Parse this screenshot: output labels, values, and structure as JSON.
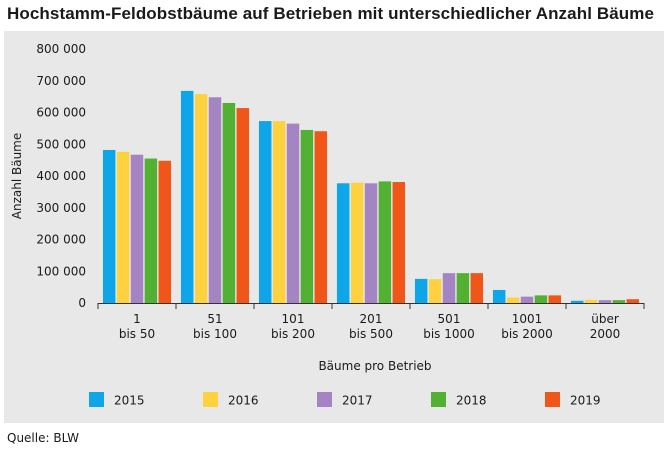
{
  "header": {
    "title": "Hochstamm-Feldobstbäume auf Betrieben mit unterschiedlicher Anzahl Bäume"
  },
  "footer": {
    "source": "Quelle: BLW"
  },
  "chart_data": {
    "type": "bar",
    "title": "Hochstamm-Feldobstbäume auf Betrieben mit unterschiedlicher Anzahl Bäume",
    "xlabel": "Bäume pro Betrieb",
    "ylabel": "Anzahl Bäume",
    "ylim": [
      0,
      800000
    ],
    "yticks": [
      {
        "value": 0,
        "label": "0"
      },
      {
        "value": 100000,
        "label": "100 000"
      },
      {
        "value": 200000,
        "label": "200 000"
      },
      {
        "value": 300000,
        "label": "300 000"
      },
      {
        "value": 400000,
        "label": "400 000"
      },
      {
        "value": 500000,
        "label": "500 000"
      },
      {
        "value": 600000,
        "label": "600 000"
      },
      {
        "value": 700000,
        "label": "700 000"
      },
      {
        "value": 800000,
        "label": "800 000"
      }
    ],
    "grid": false,
    "legend": "bottom",
    "categories": [
      [
        "1",
        "bis 50"
      ],
      [
        "51",
        "bis 100"
      ],
      [
        "101",
        "bis 200"
      ],
      [
        "201",
        "bis 500"
      ],
      [
        "501",
        "bis 1000"
      ],
      [
        "1001",
        "bis 2000"
      ],
      [
        "über",
        "2000"
      ]
    ],
    "series": [
      {
        "name": "2015",
        "color": "#0ea5e9",
        "values": [
          482000,
          668000,
          573000,
          377000,
          76000,
          41000,
          7000
        ]
      },
      {
        "name": "2016",
        "color": "#fdd23e",
        "values": [
          476000,
          658000,
          573000,
          379000,
          75000,
          17000,
          10000
        ]
      },
      {
        "name": "2017",
        "color": "#a584c4",
        "values": [
          467000,
          648000,
          565000,
          377000,
          94000,
          20000,
          9000
        ]
      },
      {
        "name": "2018",
        "color": "#52b033",
        "values": [
          455000,
          630000,
          545000,
          383000,
          94000,
          24000,
          9000
        ]
      },
      {
        "name": "2019",
        "color": "#ef5617",
        "values": [
          448000,
          614000,
          541000,
          381000,
          94000,
          24000,
          12000
        ]
      }
    ]
  }
}
